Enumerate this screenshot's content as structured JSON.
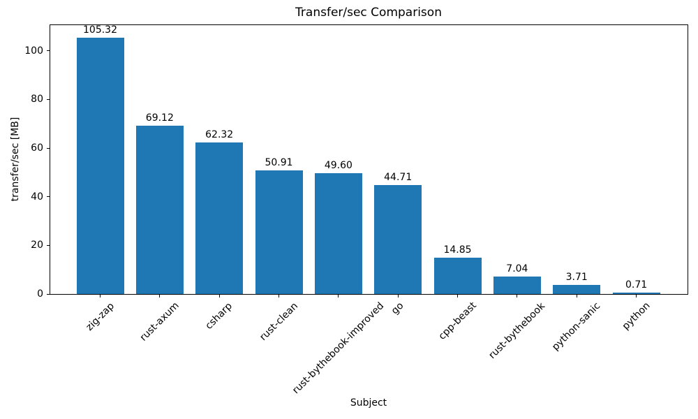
{
  "chart_data": {
    "type": "bar",
    "title": "Transfer/sec Comparison",
    "xlabel": "Subject",
    "ylabel": "transfer/sec [MB]",
    "categories": [
      "zig-zap",
      "rust-axum",
      "csharp",
      "rust-clean",
      "rust-bythebook-improved",
      "go",
      "cpp-beast",
      "rust-bythebook",
      "python-sanic",
      "python"
    ],
    "values": [
      105.32,
      69.12,
      62.32,
      50.91,
      49.6,
      44.71,
      14.85,
      7.04,
      3.71,
      0.71
    ],
    "bar_value_labels": [
      "105.32",
      "69.12",
      "62.32",
      "50.91",
      "49.60",
      "44.71",
      "14.85",
      "7.04",
      "3.71",
      "0.71"
    ],
    "yticks": [
      0,
      20,
      40,
      60,
      80,
      100
    ],
    "ylim": [
      0,
      110.55
    ],
    "bar_color": "#1f77b4",
    "grid": false,
    "legend_position": "none"
  }
}
